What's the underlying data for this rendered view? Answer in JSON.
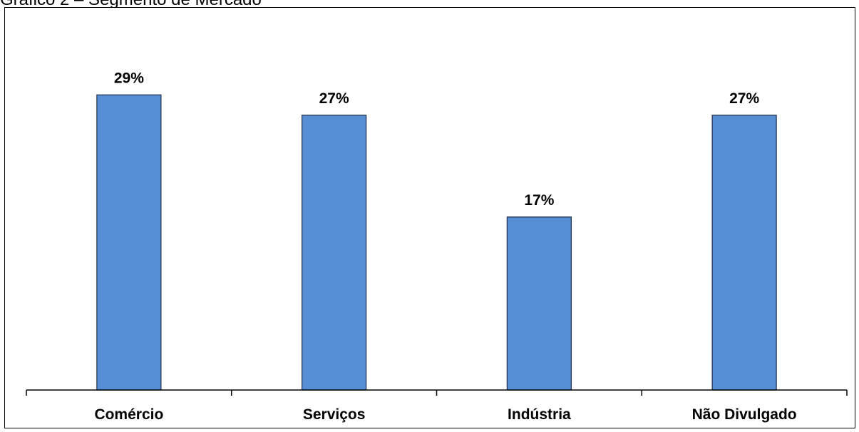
{
  "caption": "Gráfico 2 – Segmento de Mercado",
  "chart_data": {
    "type": "bar",
    "title": "Gráfico 2 – Segmento de Mercado",
    "categories": [
      "Comércio",
      "Serviços",
      "Indústria",
      "Não Divulgado"
    ],
    "values": [
      29,
      27,
      17,
      27
    ],
    "data_labels": [
      "29%",
      "27%",
      "17%",
      "27%"
    ],
    "value_unit": "%",
    "ylim": [
      0,
      35.5
    ],
    "grid": false,
    "legend": "none",
    "colors": {
      "bar_fill": "#558ed5",
      "bar_stroke": "#1f2d4a",
      "axis": "#000000"
    }
  }
}
